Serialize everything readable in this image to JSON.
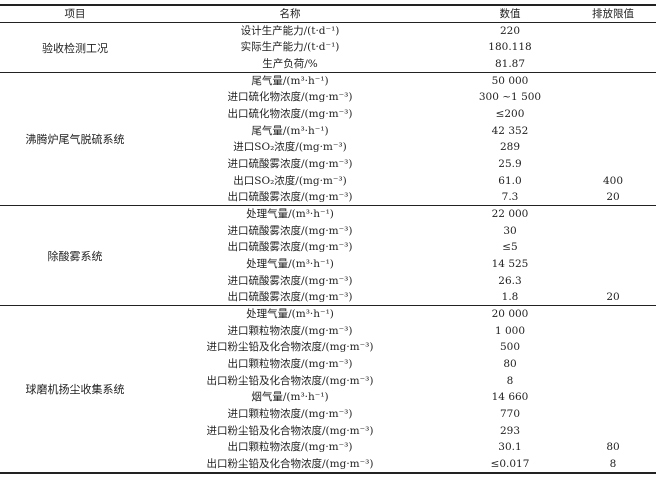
{
  "header": {
    "item": "项目",
    "name": "名称",
    "value": "数值",
    "limit": "排放限值"
  },
  "groups": [
    {
      "label": "验收检测工况",
      "rows": [
        {
          "name": "设计生产能力/(t·d⁻¹)",
          "value": "220",
          "limit": ""
        },
        {
          "name": "实际生产能力/(t·d⁻¹)",
          "value": "180.118",
          "limit": ""
        },
        {
          "name": "生产负荷/%",
          "value": "81.87",
          "limit": ""
        }
      ]
    },
    {
      "label": "沸腾炉尾气脱硫系统",
      "rows": [
        {
          "name": "尾气量/(m³·h⁻¹)",
          "value": "50 000",
          "limit": ""
        },
        {
          "name": "进口硫化物浓度/(mg·m⁻³)",
          "value": "300 ~1 500",
          "limit": ""
        },
        {
          "name": "出口硫化物浓度/(mg·m⁻³)",
          "value": "≤200",
          "limit": ""
        },
        {
          "name": "尾气量/(m³·h⁻¹)",
          "value": "42 352",
          "limit": ""
        },
        {
          "name": "进口SO₂浓度/(mg·m⁻³)",
          "value": "289",
          "limit": ""
        },
        {
          "name": "进口硫酸雾浓度/(mg·m⁻³)",
          "value": "25.9",
          "limit": ""
        },
        {
          "name": "出口SO₂浓度/(mg·m⁻³)",
          "value": "61.0",
          "limit": "400"
        },
        {
          "name": "出口硫酸雾浓度/(mg·m⁻³)",
          "value": "7.3",
          "limit": "20"
        }
      ]
    },
    {
      "label": "除酸雾系统",
      "rows": [
        {
          "name": "处理气量/(m³·h⁻¹)",
          "value": "22 000",
          "limit": ""
        },
        {
          "name": "进口硫酸雾浓度/(mg·m⁻³)",
          "value": "30",
          "limit": ""
        },
        {
          "name": "出口硫酸雾浓度/(mg·m⁻³)",
          "value": "≤5",
          "limit": ""
        },
        {
          "name": "处理气量/(m³·h⁻¹)",
          "value": "14 525",
          "limit": ""
        },
        {
          "name": "进口硫酸雾浓度/(mg·m⁻³)",
          "value": "26.3",
          "limit": ""
        },
        {
          "name": "出口硫酸雾浓度/(mg·m⁻³)",
          "value": "1.8",
          "limit": "20"
        }
      ]
    },
    {
      "label": "球磨机扬尘收集系统",
      "rows": [
        {
          "name": "处理气量/(m³·h⁻¹)",
          "value": "20 000",
          "limit": ""
        },
        {
          "name": "进口颗粒物浓度/(mg·m⁻³)",
          "value": "1 000",
          "limit": ""
        },
        {
          "name": "进口粉尘铅及化合物浓度/(mg·m⁻³)",
          "value": "500",
          "limit": ""
        },
        {
          "name": "出口颗粒物浓度/(mg·m⁻³)",
          "value": "80",
          "limit": ""
        },
        {
          "name": "出口粉尘铅及化合物浓度/(mg·m⁻³)",
          "value": "8",
          "limit": ""
        },
        {
          "name": "烟气量/(m³·h⁻¹)",
          "value": "14 660",
          "limit": ""
        },
        {
          "name": "进口颗粒物浓度/(mg·m⁻³)",
          "value": "770",
          "limit": ""
        },
        {
          "name": "进口粉尘铅及化合物浓度/(mg·m⁻³)",
          "value": "293",
          "limit": ""
        },
        {
          "name": "出口颗粒物浓度/(mg·m⁻³)",
          "value": "30.1",
          "limit": "80"
        },
        {
          "name": "出口粉尘铅及化合物浓度/(mg·m⁻³)",
          "value": "≤0.017",
          "limit": "8"
        }
      ]
    }
  ]
}
